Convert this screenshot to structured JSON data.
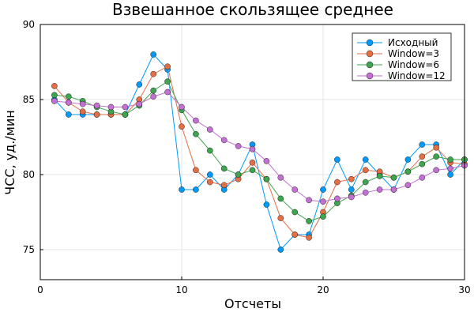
{
  "chart_data": {
    "type": "line",
    "title": "Взвешанное скользящее среднее",
    "xlabel": "Отсчеты",
    "ylabel": "ЧСС, уд./мин",
    "xlim": [
      0,
      30
    ],
    "ylim": [
      73,
      90
    ],
    "xticks": [
      0,
      10,
      20,
      30
    ],
    "yticks": [
      75,
      80,
      85,
      90
    ],
    "grid": true,
    "legend": "top-right",
    "x": [
      1,
      2,
      3,
      4,
      5,
      6,
      7,
      8,
      9,
      10,
      11,
      12,
      13,
      14,
      15,
      16,
      17,
      18,
      19,
      20,
      21,
      22,
      23,
      24,
      25,
      26,
      27,
      28,
      29,
      30
    ],
    "series": [
      {
        "name": "Исходный",
        "color": "#009AFA",
        "values": [
          85,
          84,
          84,
          84,
          84,
          84,
          86,
          88,
          87,
          79,
          79,
          80,
          79,
          80,
          82,
          78,
          75,
          76,
          76,
          79,
          81,
          79,
          81,
          80,
          79,
          81,
          82,
          82,
          80,
          81
        ]
      },
      {
        "name": "Window=3",
        "color": "#E36F47",
        "values": [
          85.9,
          84.8,
          84.2,
          84.0,
          84.0,
          84.0,
          85.0,
          86.7,
          87.2,
          83.2,
          80.3,
          79.5,
          79.3,
          79.7,
          80.8,
          79.7,
          77.1,
          76.0,
          75.8,
          77.5,
          79.5,
          79.7,
          80.3,
          80.2,
          79.8,
          80.2,
          81.2,
          81.8,
          80.8,
          80.7
        ]
      },
      {
        "name": "Window=6",
        "color": "#3EA44E",
        "values": [
          85.3,
          85.2,
          84.9,
          84.5,
          84.2,
          84.0,
          84.6,
          85.6,
          86.2,
          84.3,
          82.7,
          81.6,
          80.4,
          80.0,
          80.3,
          79.7,
          78.4,
          77.5,
          76.9,
          77.2,
          78.1,
          78.6,
          79.5,
          79.9,
          79.8,
          80.2,
          80.7,
          81.2,
          81.0,
          81.0
        ]
      },
      {
        "name": "Window=12",
        "color": "#C271D2",
        "values": [
          84.9,
          84.8,
          84.7,
          84.6,
          84.5,
          84.5,
          84.7,
          85.2,
          85.5,
          84.5,
          83.6,
          83.0,
          82.3,
          81.9,
          81.7,
          80.9,
          79.8,
          79.0,
          78.3,
          78.2,
          78.4,
          78.5,
          78.8,
          79.0,
          79.0,
          79.3,
          79.8,
          80.3,
          80.4,
          80.6
        ]
      }
    ]
  }
}
